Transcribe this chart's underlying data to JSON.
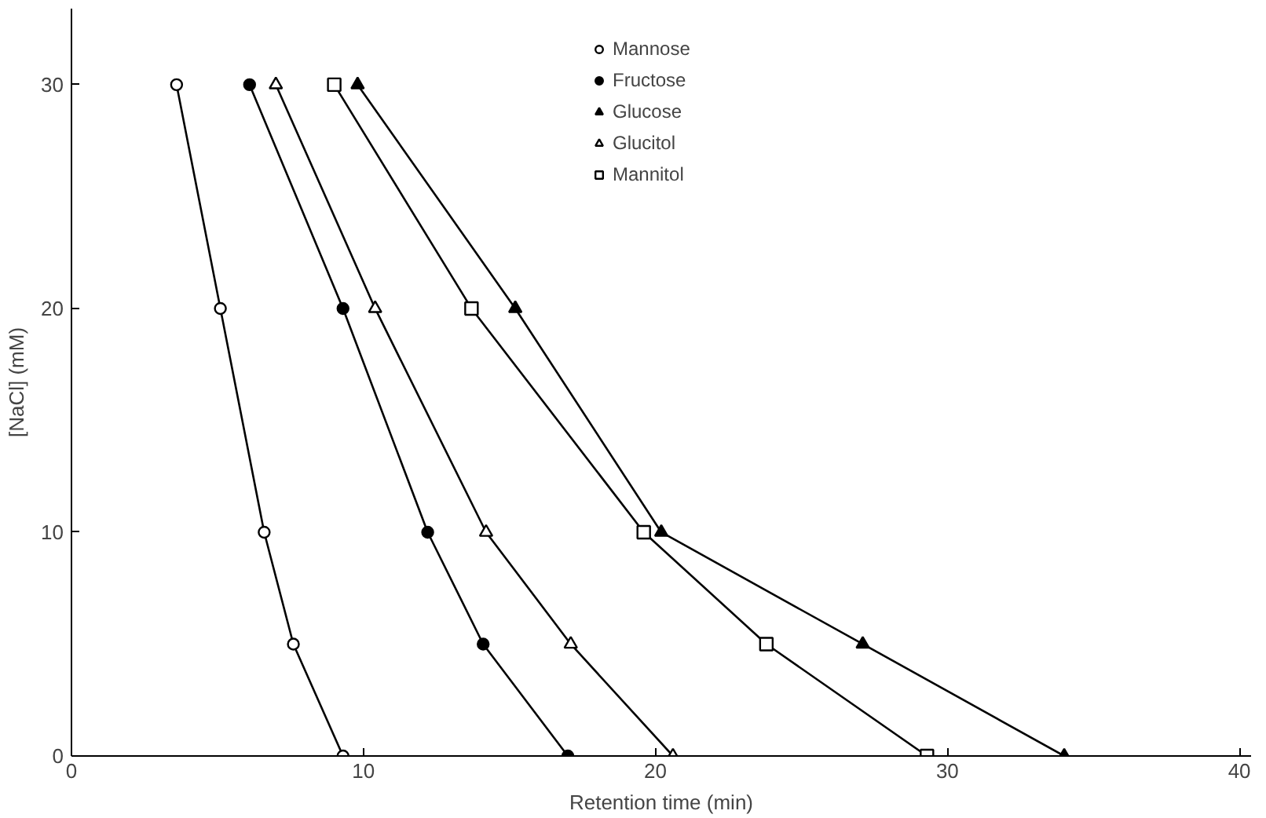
{
  "chart_data": {
    "type": "line",
    "xlabel": "Retention time (min)",
    "ylabel": "[NaCl] (mM)",
    "xlim": [
      0,
      40.4
    ],
    "ylim": [
      0,
      33.4
    ],
    "xticks": [
      0,
      10,
      20,
      30,
      40
    ],
    "yticks": [
      0,
      10,
      20,
      30
    ],
    "grid": false,
    "legend": "top right",
    "line_style": "solid",
    "series": [
      {
        "name": "Mannose",
        "color": "#ffffff",
        "marker": "circle",
        "x": [
          3.6,
          5.1,
          6.6,
          7.6,
          9.3
        ],
        "values": [
          30,
          20,
          10,
          5,
          0
        ]
      },
      {
        "name": "Fructose",
        "color": "#000000",
        "marker": "circle",
        "x": [
          6.1,
          9.3,
          12.2,
          14.1,
          17.0
        ],
        "values": [
          30,
          20,
          10,
          5,
          0
        ]
      },
      {
        "name": "Glucose",
        "color": "#000000",
        "marker": "triangle",
        "x": [
          9.8,
          15.2,
          20.2,
          27.1,
          34.0
        ],
        "values": [
          30,
          20,
          10,
          5,
          0
        ]
      },
      {
        "name": "Glucitol",
        "color": "#ffffff",
        "marker": "triangle",
        "x": [
          7.0,
          10.4,
          14.2,
          17.1,
          20.6
        ],
        "values": [
          30,
          20,
          10,
          5,
          0
        ]
      },
      {
        "name": "Mannitol",
        "color": "#ffffff",
        "marker": "square",
        "x": [
          9.0,
          13.7,
          19.6,
          23.8,
          29.3
        ],
        "values": [
          30,
          20,
          10,
          5,
          0
        ]
      }
    ]
  }
}
